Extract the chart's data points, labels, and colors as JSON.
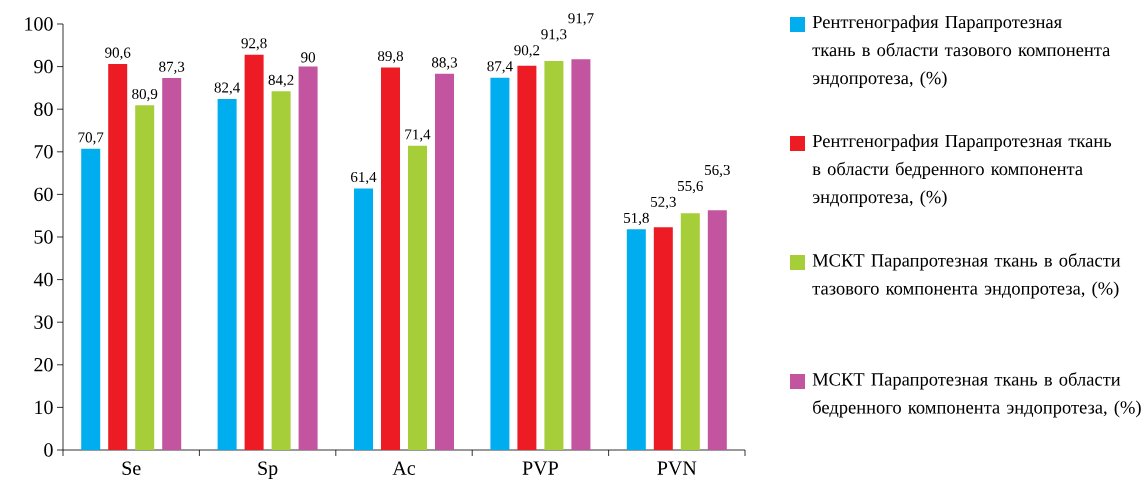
{
  "chart_data": {
    "type": "bar",
    "categories": [
      "Se",
      "Sp",
      "Ac",
      "PVP",
      "PVN"
    ],
    "series": [
      {
        "name": "Рентгенография Парапротезная ткань в области тазового компонента эндопротеза, (%)",
        "color": "#00aeef",
        "values": [
          70.7,
          82.4,
          61.4,
          87.4,
          51.8
        ],
        "value_labels": [
          "70,7",
          "82,4",
          "61,4",
          "87,4",
          "51,8"
        ]
      },
      {
        "name": "Рентгенография Парапротезная ткань в области  бедренного компонента эндопротеза, (%)",
        "color": "#ed1c24",
        "values": [
          90.6,
          92.8,
          89.8,
          90.2,
          52.3
        ],
        "value_labels": [
          "90,6",
          "92,8",
          "89,8",
          "90,2",
          "52,3"
        ]
      },
      {
        "name": "МСКТ Парапротезная ткань в области тазового компонента эндопротеза, (%)",
        "color": "#a6ce39",
        "values": [
          80.9,
          84.2,
          71.4,
          91.3,
          55.6
        ],
        "value_labels": [
          "80,9",
          "84,2",
          "71,4",
          "91,3",
          "55,6"
        ]
      },
      {
        "name": "МСКТ Парапротезная ткань в области  бедренного компонента эндопротеза, (%)",
        "color": "#c355a0",
        "values": [
          87.3,
          90,
          88.3,
          91.7,
          56.3
        ],
        "value_labels": [
          "87,3",
          "90",
          "88,3",
          "91,7",
          "56,3"
        ]
      }
    ],
    "ylim": [
      0,
      100
    ],
    "yticks": [
      0,
      10,
      20,
      30,
      40,
      50,
      60,
      70,
      80,
      90,
      100
    ],
    "grid": false,
    "legend": "right"
  }
}
